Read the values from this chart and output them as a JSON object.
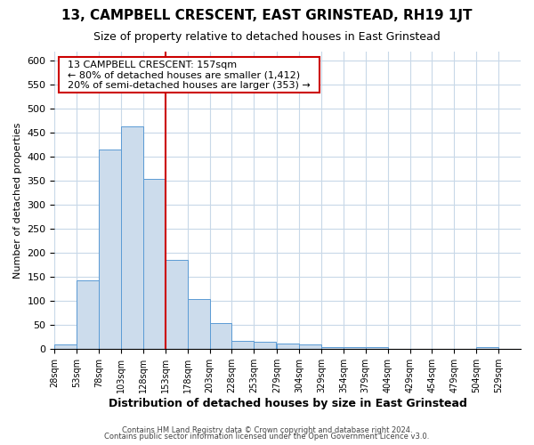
{
  "title": "13, CAMPBELL CRESCENT, EAST GRINSTEAD, RH19 1JT",
  "subtitle": "Size of property relative to detached houses in East Grinstead",
  "xlabel": "Distribution of detached houses by size in East Grinstead",
  "ylabel": "Number of detached properties",
  "vline_x": 153,
  "annotation_title": "13 CAMPBELL CRESCENT: 157sqm",
  "annotation_line1": "← 80% of detached houses are smaller (1,412)",
  "annotation_line2": "20% of semi-detached houses are larger (353) →",
  "bar_color": "#ccdcec",
  "bar_edge_color": "#5b9bd5",
  "vline_color": "#cc0000",
  "annotation_box_edge_color": "#cc0000",
  "background_color": "#ffffff",
  "grid_color": "#c8d8e8",
  "bins": [
    28,
    53,
    78,
    103,
    128,
    153,
    178,
    203,
    228,
    253,
    279,
    304,
    329,
    354,
    379,
    404,
    429,
    454,
    479,
    504,
    529
  ],
  "counts": [
    10,
    143,
    415,
    463,
    355,
    185,
    105,
    55,
    17,
    15,
    12,
    10,
    5,
    5,
    4,
    0,
    0,
    0,
    0,
    5,
    0
  ],
  "ylim": [
    0,
    620
  ],
  "yticks": [
    0,
    50,
    100,
    150,
    200,
    250,
    300,
    350,
    400,
    450,
    500,
    550,
    600
  ],
  "title_fontsize": 11,
  "subtitle_fontsize": 9,
  "xlabel_fontsize": 9,
  "ylabel_fontsize": 8,
  "tick_fontsize": 8,
  "footer_line1": "Contains HM Land Registry data © Crown copyright and database right 2024.",
  "footer_line2": "Contains public sector information licensed under the Open Government Licence v3.0."
}
